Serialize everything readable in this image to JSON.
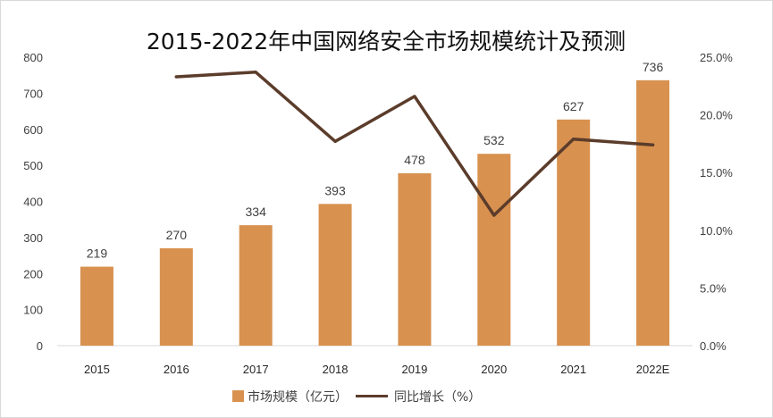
{
  "chart_data": {
    "type": "bar",
    "title": "2015-2022年中国网络安全市场规模统计及预测",
    "xlabel": "",
    "ylabel": "",
    "categories": [
      "2015",
      "2016",
      "2017",
      "2018",
      "2019",
      "2020",
      "2021",
      "2022E"
    ],
    "series": [
      {
        "name": "市场规模（亿元）",
        "type": "bar",
        "axis": "left",
        "values": [
          219,
          270,
          334,
          393,
          478,
          532,
          627,
          736
        ],
        "data_labels": [
          "219",
          "270",
          "334",
          "393",
          "478",
          "532",
          "627",
          "736"
        ],
        "color": "#D8914F"
      },
      {
        "name": "同比增长（%）",
        "type": "line",
        "axis": "right",
        "values": [
          null,
          23.3,
          23.7,
          17.7,
          21.6,
          11.3,
          17.9,
          17.4
        ],
        "color": "#5B3C2B"
      }
    ],
    "ylim": [
      0,
      800
    ],
    "y_ticks": [
      "0",
      "100",
      "200",
      "300",
      "400",
      "500",
      "600",
      "700",
      "800"
    ],
    "y2lim": [
      0,
      25
    ],
    "y2_ticks": [
      "0.0%",
      "5.0%",
      "10.0%",
      "15.0%",
      "20.0%",
      "25.0%"
    ],
    "grid": false,
    "legend_position": "bottom"
  }
}
